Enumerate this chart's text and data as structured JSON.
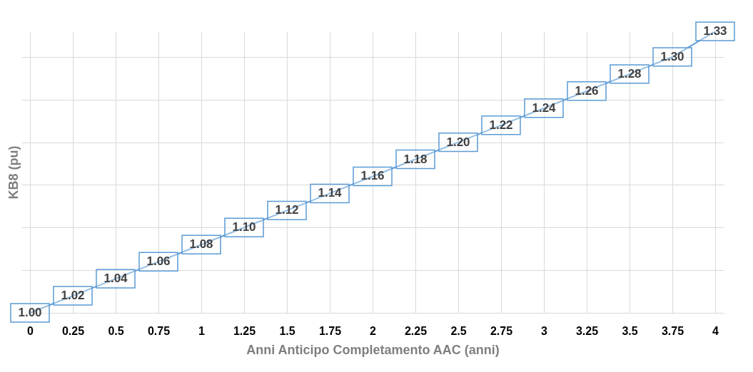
{
  "chart_data": {
    "type": "line",
    "xlabel": "Anni Anticipo Completamento AAC (anni)",
    "ylabel": "KB8 (pu)",
    "categories": [
      "0",
      "0.25",
      "0.5",
      "0.75",
      "1",
      "1.25",
      "1.5",
      "1.75",
      "2",
      "2.25",
      "2.5",
      "2.75",
      "3",
      "3.25",
      "3.5",
      "3.75",
      "4"
    ],
    "values": [
      1.0,
      1.02,
      1.04,
      1.06,
      1.08,
      1.1,
      1.12,
      1.14,
      1.16,
      1.18,
      1.2,
      1.22,
      1.24,
      1.26,
      1.28,
      1.3,
      1.33
    ],
    "value_labels": [
      "1.00",
      "1.02",
      "1.04",
      "1.06",
      "1.08",
      "1.10",
      "1.12",
      "1.14",
      "1.16",
      "1.18",
      "1.20",
      "1.22",
      "1.24",
      "1.26",
      "1.28",
      "1.30",
      "1.33"
    ],
    "color": "#5b9bd5",
    "line_style": "solid",
    "tick_labels": "x",
    "grid": true
  }
}
